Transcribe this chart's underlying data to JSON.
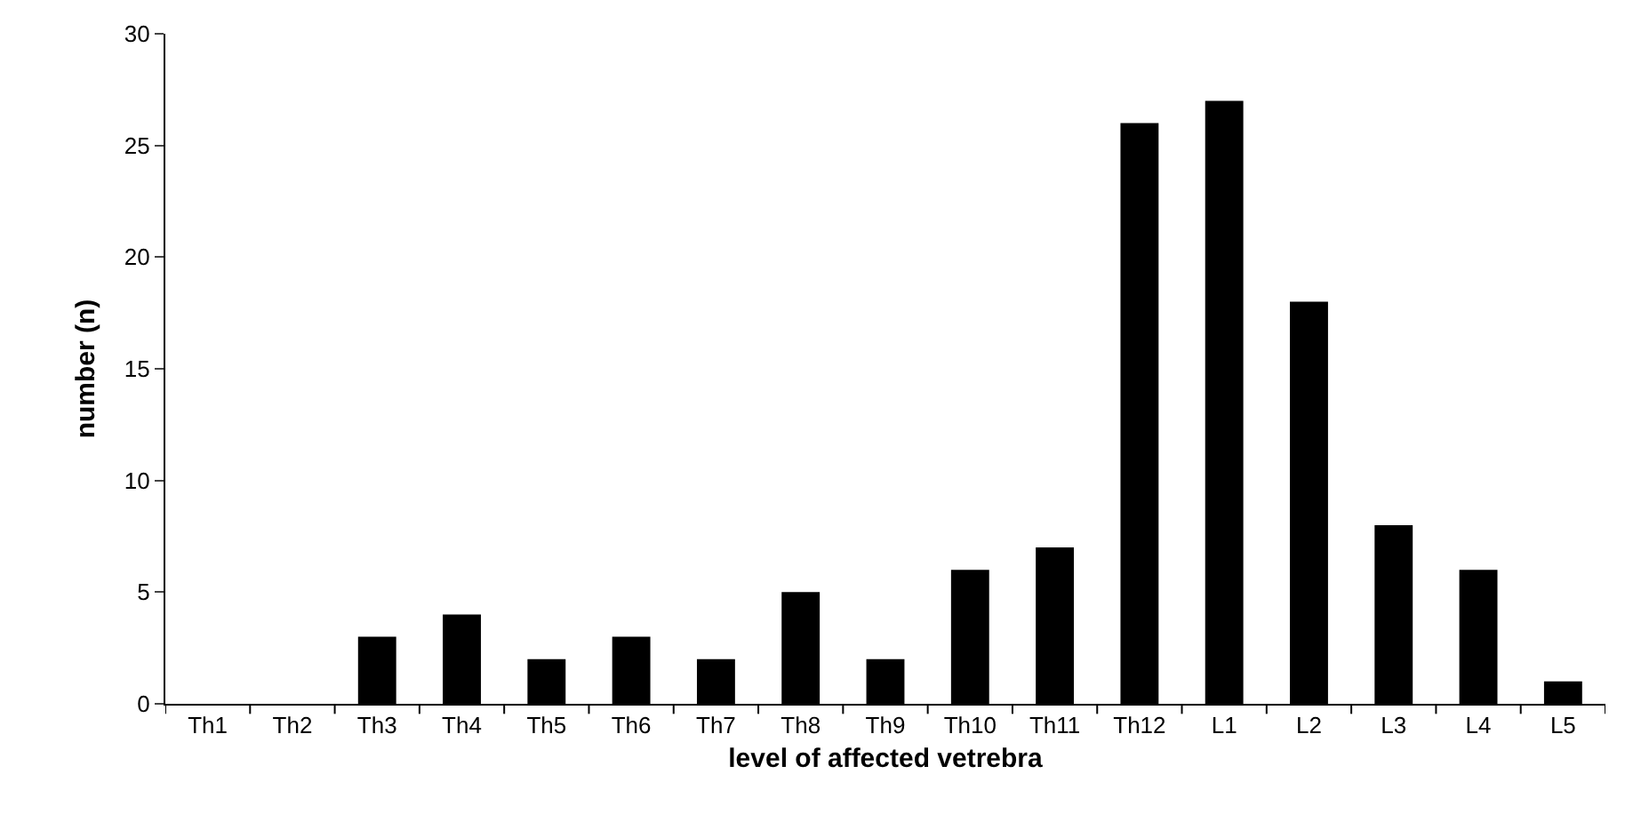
{
  "chart_data": {
    "type": "bar",
    "xlabel": "level of affected vetrebra",
    "ylabel": "number (n)",
    "categories": [
      "Th1",
      "Th2",
      "Th3",
      "Th4",
      "Th5",
      "Th6",
      "Th7",
      "Th8",
      "Th9",
      "Th10",
      "Th11",
      "Th12",
      "L1",
      "L2",
      "L3",
      "L4",
      "L5"
    ],
    "values": [
      0,
      0,
      3,
      4,
      2,
      3,
      2,
      5,
      2,
      6,
      7,
      26,
      27,
      18,
      8,
      6,
      1
    ],
    "color": "#000000",
    "ylim": [
      0,
      30
    ],
    "yticks": [
      0,
      5,
      10,
      15,
      20,
      25,
      30
    ]
  }
}
